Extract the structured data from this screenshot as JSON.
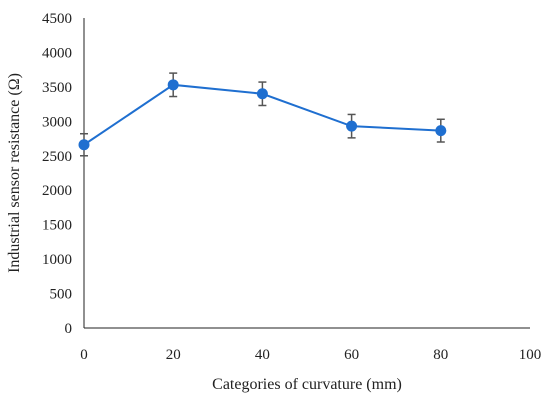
{
  "chart_data": {
    "type": "line",
    "xlabel": "Categories of curvature (mm)",
    "ylabel": "Industrial sensor resistance (Ω)",
    "xlim": [
      0,
      100
    ],
    "ylim": [
      0,
      4500
    ],
    "x_ticks": [
      "0",
      "20",
      "40",
      "60",
      "80",
      "100"
    ],
    "y_ticks": [
      "0",
      "500",
      "1000",
      "1500",
      "2000",
      "2500",
      "3000",
      "3500",
      "4000",
      "4500"
    ],
    "grid": false,
    "legend": "none",
    "series": [
      {
        "color": "#1f6fd0",
        "points": [
          {
            "x": 0,
            "y": 2660,
            "err": 160
          },
          {
            "x": 20,
            "y": 3530,
            "err": 170
          },
          {
            "x": 40,
            "y": 3400,
            "err": 170
          },
          {
            "x": 60,
            "y": 2930,
            "err": 170
          },
          {
            "x": 80,
            "y": 2865,
            "err": 165
          }
        ]
      }
    ],
    "error_bar_color": "#555555"
  }
}
